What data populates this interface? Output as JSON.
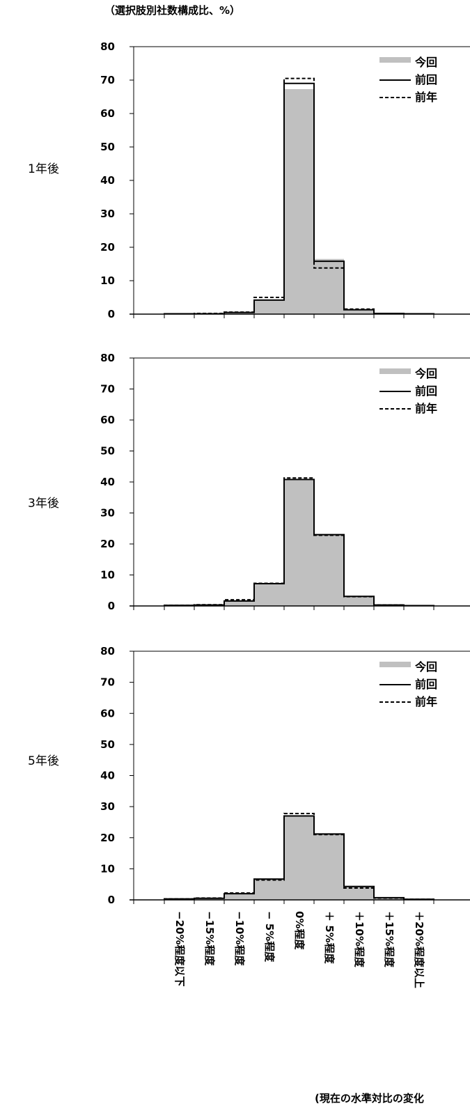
{
  "unit_label": "（選択肢別社数構成比、%）",
  "x_note": "(現在の水準対比の変化",
  "chart_data": [
    {
      "type": "bar",
      "title": "1年後",
      "categories": [
        "−20%程度以下",
        "−15%程度",
        "−10%程度",
        "− 5%程度",
        "0%程度",
        "＋ 5%程度",
        "＋10%程度",
        "＋15%程度",
        "＋20%程度以上"
      ],
      "ylim": [
        0,
        80
      ],
      "yticks": [
        "0",
        "10",
        "20",
        "30",
        "40",
        "50",
        "60",
        "70",
        "80"
      ],
      "legend": [
        "今回",
        "前回",
        "前年"
      ],
      "series": [
        {
          "name": "今回",
          "style": "bar",
          "color": "#c0c0c0",
          "values": [
            0.1,
            0.1,
            0.5,
            4.0,
            67.3,
            16.5,
            1.2,
            0.2,
            0.1
          ]
        },
        {
          "name": "前回",
          "style": "line-solid",
          "color": "#000000",
          "values": [
            0.1,
            0.1,
            0.5,
            4.2,
            69.0,
            15.8,
            1.3,
            0.2,
            0.1
          ]
        },
        {
          "name": "前年",
          "style": "line-dashed",
          "color": "#000000",
          "values": [
            0.1,
            0.2,
            0.6,
            5.0,
            70.5,
            13.8,
            1.5,
            0.2,
            0.1
          ]
        }
      ]
    },
    {
      "type": "bar",
      "title": "3年後",
      "categories": [
        "−20%程度以下",
        "−15%程度",
        "−10%程度",
        "− 5%程度",
        "0%程度",
        "＋ 5%程度",
        "＋10%程度",
        "＋15%程度",
        "＋20%程度以上"
      ],
      "ylim": [
        0,
        80
      ],
      "yticks": [
        "0",
        "10",
        "20",
        "30",
        "40",
        "50",
        "60",
        "70",
        "80"
      ],
      "legend": [
        "今回",
        "前回",
        "前年"
      ],
      "series": [
        {
          "name": "今回",
          "style": "bar",
          "color": "#c0c0c0",
          "values": [
            0.2,
            0.3,
            1.5,
            7.2,
            40.5,
            23.2,
            3.0,
            0.3,
            0.1
          ]
        },
        {
          "name": "前回",
          "style": "line-solid",
          "color": "#000000",
          "values": [
            0.2,
            0.3,
            1.6,
            7.2,
            40.8,
            23.0,
            3.1,
            0.3,
            0.1
          ]
        },
        {
          "name": "前年",
          "style": "line-dashed",
          "color": "#000000",
          "values": [
            0.2,
            0.4,
            2.0,
            7.3,
            41.3,
            22.8,
            3.0,
            0.3,
            0.1
          ]
        }
      ]
    },
    {
      "type": "bar",
      "title": "5年後",
      "categories": [
        "−20%程度以下",
        "−15%程度",
        "−10%程度",
        "− 5%程度",
        "0%程度",
        "＋ 5%程度",
        "＋10%程度",
        "＋15%程度",
        "＋20%程度以上"
      ],
      "ylim": [
        0,
        80
      ],
      "yticks": [
        "0",
        "10",
        "20",
        "30",
        "40",
        "50",
        "60",
        "70",
        "80"
      ],
      "legend": [
        "今回",
        "前回",
        "前年"
      ],
      "series": [
        {
          "name": "今回",
          "style": "bar",
          "color": "#c0c0c0",
          "values": [
            0.3,
            0.5,
            1.8,
            6.5,
            27.0,
            21.3,
            4.2,
            0.7,
            0.2
          ]
        },
        {
          "name": "前回",
          "style": "line-solid",
          "color": "#000000",
          "values": [
            0.3,
            0.5,
            2.0,
            6.7,
            27.0,
            21.2,
            4.3,
            0.7,
            0.2
          ]
        },
        {
          "name": "前年",
          "style": "line-dashed",
          "color": "#000000",
          "values": [
            0.3,
            0.6,
            2.2,
            6.4,
            27.8,
            21.0,
            3.8,
            0.6,
            0.2
          ]
        }
      ]
    }
  ]
}
